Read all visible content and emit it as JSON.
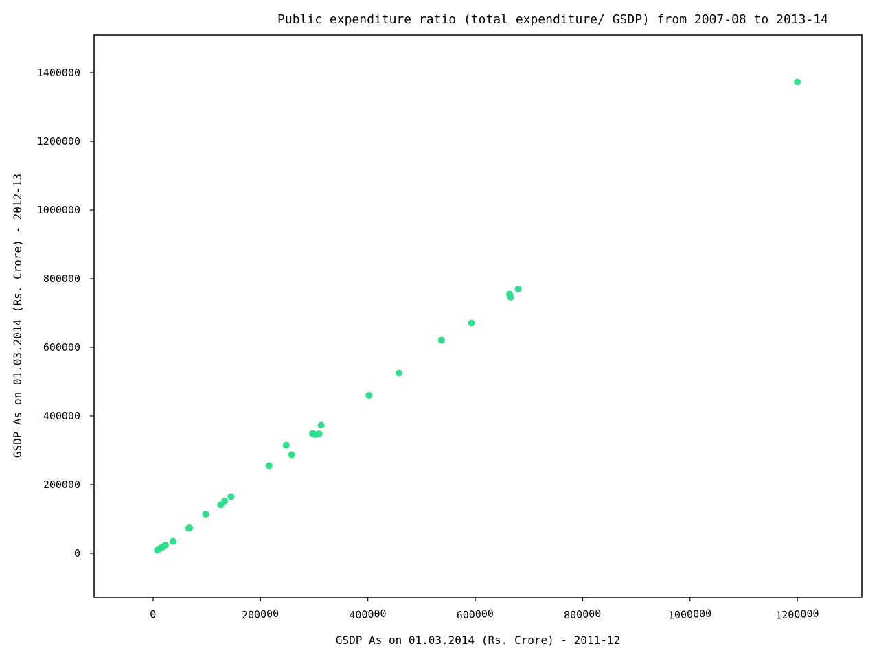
{
  "chart_data": {
    "type": "scatter",
    "title": "Public expenditure ratio (total expenditure/ GSDP)  from 2007-08 to 2013-14",
    "xlabel": "GSDP As on 01.03.2014 (Rs. Crore) - 2011-12",
    "ylabel": "GSDP As on 01.03.2014 (Rs. Crore) - 2012-13",
    "xlim": [
      -110000,
      1320000
    ],
    "ylim": [
      -128000,
      1510000
    ],
    "xticks": [
      0,
      200000,
      400000,
      600000,
      800000,
      1000000,
      1200000
    ],
    "xtick_labels": [
      "0",
      "200000",
      "400000",
      "600000",
      "800000",
      "1000000",
      "1200000"
    ],
    "yticks": [
      0,
      200000,
      400000,
      600000,
      800000,
      1000000,
      1200000,
      1400000
    ],
    "ytick_labels": [
      "0",
      "200000",
      "400000",
      "600000",
      "800000",
      "1000000",
      "1200000",
      "1400000"
    ],
    "grid": false,
    "marker_color": "#2ee08e",
    "points": [
      {
        "x": 8000,
        "y": 9000
      },
      {
        "x": 12000,
        "y": 13000
      },
      {
        "x": 16000,
        "y": 17000
      },
      {
        "x": 20000,
        "y": 20000
      },
      {
        "x": 23000,
        "y": 24000
      },
      {
        "x": 37000,
        "y": 35000
      },
      {
        "x": 66000,
        "y": 73000
      },
      {
        "x": 68000,
        "y": 74000
      },
      {
        "x": 98000,
        "y": 114000
      },
      {
        "x": 126000,
        "y": 141000
      },
      {
        "x": 133000,
        "y": 152000
      },
      {
        "x": 145000,
        "y": 165000
      },
      {
        "x": 216000,
        "y": 255000
      },
      {
        "x": 248000,
        "y": 315000
      },
      {
        "x": 258000,
        "y": 287000
      },
      {
        "x": 297000,
        "y": 349000
      },
      {
        "x": 302000,
        "y": 346000
      },
      {
        "x": 309000,
        "y": 348000
      },
      {
        "x": 313000,
        "y": 373000
      },
      {
        "x": 402000,
        "y": 460000
      },
      {
        "x": 458000,
        "y": 525000
      },
      {
        "x": 537000,
        "y": 621000
      },
      {
        "x": 593000,
        "y": 671000
      },
      {
        "x": 664000,
        "y": 755000
      },
      {
        "x": 666000,
        "y": 746000
      },
      {
        "x": 680000,
        "y": 770000
      },
      {
        "x": 1200000,
        "y": 1373000
      }
    ]
  }
}
